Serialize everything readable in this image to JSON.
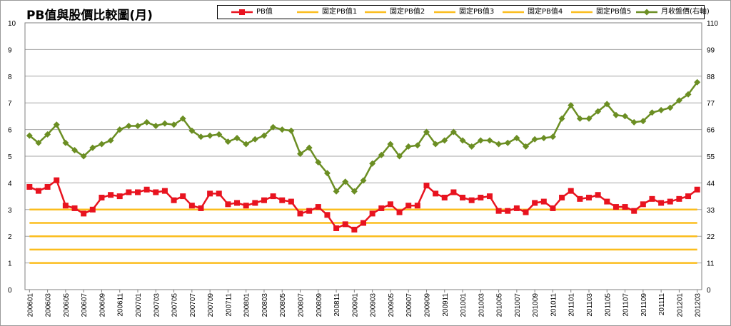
{
  "title": "PB值與股價比較圖(月)",
  "colors": {
    "pb": "#e8131f",
    "fixed": "#fbbd1e",
    "price": "#6b8e23",
    "grid": "#a6a6a6",
    "axis": "#808080"
  },
  "legend": [
    {
      "name": "PB值",
      "kind": "pb"
    },
    {
      "name": "固定PB值1",
      "kind": "fixed"
    },
    {
      "name": "固定PB值2",
      "kind": "fixed"
    },
    {
      "name": "固定PB值3",
      "kind": "fixed"
    },
    {
      "name": "固定PB值4",
      "kind": "fixed"
    },
    {
      "name": "固定PB值5",
      "kind": "fixed"
    },
    {
      "name": "月收盤價(右軸)",
      "kind": "price"
    }
  ],
  "chart_data": {
    "type": "line",
    "x": [
      "200601",
      "200602",
      "200603",
      "200604",
      "200605",
      "200606",
      "200607",
      "200608",
      "200609",
      "200610",
      "200611",
      "200612",
      "200701",
      "200702",
      "200703",
      "200704",
      "200705",
      "200706",
      "200707",
      "200708",
      "200709",
      "200710",
      "200711",
      "200712",
      "200801",
      "200802",
      "200803",
      "200804",
      "200805",
      "200806",
      "200807",
      "200808",
      "200809",
      "200810",
      "200811",
      "200812",
      "200901",
      "200902",
      "200903",
      "200904",
      "200905",
      "200906",
      "200907",
      "200908",
      "200909",
      "200910",
      "200911",
      "200912",
      "201001",
      "201002",
      "201003",
      "201004",
      "201005",
      "201006",
      "201007",
      "201008",
      "201009",
      "201010",
      "201011",
      "201012",
      "201101",
      "201102",
      "201103",
      "201104",
      "201105",
      "201106",
      "201107",
      "201108",
      "201109",
      "201110",
      "201111",
      "201112",
      "201201",
      "201202",
      "201203"
    ],
    "x_tick_labels": [
      "200601",
      "200603",
      "200605",
      "200607",
      "200609",
      "200611",
      "200701",
      "200703",
      "200705",
      "200707",
      "200709",
      "200711",
      "200801",
      "200803",
      "200805",
      "200807",
      "200809",
      "200811",
      "200901",
      "200903",
      "200905",
      "200907",
      "200909",
      "200911",
      "201001",
      "201003",
      "201005",
      "201007",
      "201009",
      "201011",
      "201101",
      "201103",
      "201105",
      "201107",
      "201109",
      "201111",
      "201201",
      "201203"
    ],
    "series": [
      {
        "name": "PB值",
        "axis": "left",
        "values": [
          3.85,
          3.7,
          3.85,
          4.1,
          3.15,
          3.05,
          2.85,
          3.0,
          3.45,
          3.55,
          3.5,
          3.65,
          3.65,
          3.75,
          3.65,
          3.7,
          3.35,
          3.5,
          3.15,
          3.05,
          3.6,
          3.6,
          3.2,
          3.25,
          3.15,
          3.25,
          3.35,
          3.5,
          3.35,
          3.3,
          2.85,
          2.95,
          3.1,
          2.8,
          2.3,
          2.45,
          2.25,
          2.5,
          2.85,
          3.05,
          3.2,
          2.9,
          3.15,
          3.15,
          3.9,
          3.6,
          3.45,
          3.65,
          3.45,
          3.35,
          3.45,
          3.5,
          2.95,
          2.95,
          3.05,
          2.9,
          3.25,
          3.3,
          3.05,
          3.45,
          3.7,
          3.4,
          3.45,
          3.55,
          3.3,
          3.1,
          3.1,
          2.95,
          3.2,
          3.4,
          3.25,
          3.3,
          3.4,
          3.5,
          3.75
        ]
      },
      {
        "name": "固定PB值1",
        "axis": "left",
        "values": [
          1,
          1,
          1,
          1,
          1,
          1,
          1,
          1,
          1,
          1,
          1,
          1,
          1,
          1,
          1,
          1,
          1,
          1,
          1,
          1,
          1,
          1,
          1,
          1,
          1,
          1,
          1,
          1,
          1,
          1,
          1,
          1,
          1,
          1,
          1,
          1,
          1,
          1,
          1,
          1,
          1,
          1,
          1,
          1,
          1,
          1,
          1,
          1,
          1,
          1,
          1,
          1,
          1,
          1,
          1,
          1,
          1,
          1,
          1,
          1,
          1,
          1,
          1,
          1,
          1,
          1,
          1,
          1,
          1,
          1,
          1,
          1,
          1,
          1,
          1
        ]
      },
      {
        "name": "固定PB值2",
        "axis": "left",
        "values": [
          1.5,
          1.5,
          1.5,
          1.5,
          1.5,
          1.5,
          1.5,
          1.5,
          1.5,
          1.5,
          1.5,
          1.5,
          1.5,
          1.5,
          1.5,
          1.5,
          1.5,
          1.5,
          1.5,
          1.5,
          1.5,
          1.5,
          1.5,
          1.5,
          1.5,
          1.5,
          1.5,
          1.5,
          1.5,
          1.5,
          1.5,
          1.5,
          1.5,
          1.5,
          1.5,
          1.5,
          1.5,
          1.5,
          1.5,
          1.5,
          1.5,
          1.5,
          1.5,
          1.5,
          1.5,
          1.5,
          1.5,
          1.5,
          1.5,
          1.5,
          1.5,
          1.5,
          1.5,
          1.5,
          1.5,
          1.5,
          1.5,
          1.5,
          1.5,
          1.5,
          1.5,
          1.5,
          1.5,
          1.5,
          1.5,
          1.5,
          1.5,
          1.5,
          1.5,
          1.5,
          1.5,
          1.5,
          1.5,
          1.5,
          1.5
        ]
      },
      {
        "name": "固定PB值3",
        "axis": "left",
        "values": [
          2,
          2,
          2,
          2,
          2,
          2,
          2,
          2,
          2,
          2,
          2,
          2,
          2,
          2,
          2,
          2,
          2,
          2,
          2,
          2,
          2,
          2,
          2,
          2,
          2,
          2,
          2,
          2,
          2,
          2,
          2,
          2,
          2,
          2,
          2,
          2,
          2,
          2,
          2,
          2,
          2,
          2,
          2,
          2,
          2,
          2,
          2,
          2,
          2,
          2,
          2,
          2,
          2,
          2,
          2,
          2,
          2,
          2,
          2,
          2,
          2,
          2,
          2,
          2,
          2,
          2,
          2,
          2,
          2,
          2,
          2,
          2,
          2,
          2,
          2
        ]
      },
      {
        "name": "固定PB值4",
        "axis": "left",
        "values": [
          2.5,
          2.5,
          2.5,
          2.5,
          2.5,
          2.5,
          2.5,
          2.5,
          2.5,
          2.5,
          2.5,
          2.5,
          2.5,
          2.5,
          2.5,
          2.5,
          2.5,
          2.5,
          2.5,
          2.5,
          2.5,
          2.5,
          2.5,
          2.5,
          2.5,
          2.5,
          2.5,
          2.5,
          2.5,
          2.5,
          2.5,
          2.5,
          2.5,
          2.5,
          2.5,
          2.5,
          2.5,
          2.5,
          2.5,
          2.5,
          2.5,
          2.5,
          2.5,
          2.5,
          2.5,
          2.5,
          2.5,
          2.5,
          2.5,
          2.5,
          2.5,
          2.5,
          2.5,
          2.5,
          2.5,
          2.5,
          2.5,
          2.5,
          2.5,
          2.5,
          2.5,
          2.5,
          2.5,
          2.5,
          2.5,
          2.5,
          2.5,
          2.5,
          2.5,
          2.5,
          2.5,
          2.5,
          2.5,
          2.5,
          2.5
        ]
      },
      {
        "name": "固定PB值5",
        "axis": "left",
        "values": [
          3,
          3,
          3,
          3,
          3,
          3,
          3,
          3,
          3,
          3,
          3,
          3,
          3,
          3,
          3,
          3,
          3,
          3,
          3,
          3,
          3,
          3,
          3,
          3,
          3,
          3,
          3,
          3,
          3,
          3,
          3,
          3,
          3,
          3,
          3,
          3,
          3,
          3,
          3,
          3,
          3,
          3,
          3,
          3,
          3,
          3,
          3,
          3,
          3,
          3,
          3,
          3,
          3,
          3,
          3,
          3,
          3,
          3,
          3,
          3,
          3,
          3,
          3,
          3,
          3,
          3,
          3,
          3,
          3,
          3,
          3,
          3,
          3,
          3,
          3
        ]
      },
      {
        "name": "月收盤價(右軸)",
        "axis": "right",
        "values": [
          63.5,
          60.5,
          64,
          68,
          60.5,
          57.5,
          55,
          58.5,
          60,
          61.5,
          66,
          67.5,
          67.5,
          69,
          67.5,
          68.5,
          68,
          70.5,
          65.5,
          63,
          63.5,
          64,
          61,
          62.5,
          60,
          62,
          63.5,
          67,
          66,
          65.5,
          56,
          58.5,
          52.5,
          48,
          40.5,
          44.5,
          40.5,
          45,
          52,
          55.5,
          60,
          55,
          59,
          59.5,
          65,
          60,
          61.5,
          65,
          61.5,
          59,
          61.5,
          61.5,
          60,
          60.5,
          62.5,
          59,
          62,
          62.5,
          63,
          70.5,
          76,
          70.5,
          70.5,
          73.5,
          76.5,
          72,
          71.5,
          69,
          69.5,
          73,
          74,
          75,
          78,
          80.5,
          85.5
        ]
      }
    ],
    "y_left": {
      "ylim": [
        0,
        10
      ],
      "ticks": [
        0,
        1,
        2,
        3,
        4,
        5,
        6,
        7,
        8,
        9,
        10
      ]
    },
    "y_right": {
      "ylim": [
        0,
        110
      ],
      "ticks": [
        0,
        11,
        22,
        33,
        44,
        55,
        66,
        77,
        88,
        99,
        110
      ]
    },
    "grid": true,
    "legend_position": "top"
  }
}
